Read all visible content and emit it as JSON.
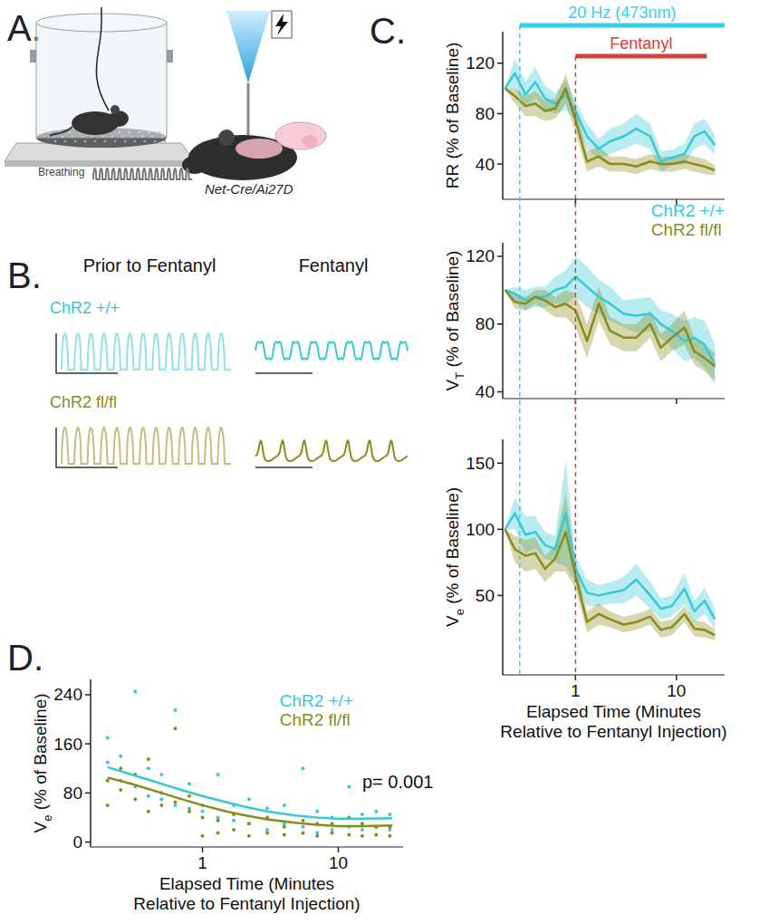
{
  "panels": {
    "a": {
      "letter": "A.",
      "trace_label": "Breathing",
      "mouse_label": "Net-Cre/Ai27D"
    },
    "b": {
      "letter": "B.",
      "columns": [
        "Prior to Fentanyl",
        "Fentanyl"
      ],
      "rows": [
        {
          "name": "ChR2 +/+",
          "color": "#35c8d5"
        },
        {
          "name": "ChR2 fl/fl",
          "color": "#8a8a1a"
        }
      ]
    },
    "c": {
      "letter": "C."
    },
    "d": {
      "letter": "D."
    }
  },
  "chart_data": [
    {
      "type": "line",
      "ylabel": "RR (% of Baseline)",
      "log": "x",
      "tick_labels": "y",
      "legend": "lower-right",
      "x": [
        0.2,
        0.25,
        0.32,
        0.4,
        0.5,
        0.63,
        0.8,
        1,
        1.3,
        1.7,
        2.2,
        3,
        4,
        5.5,
        7,
        9,
        12,
        15,
        19,
        24
      ],
      "xlim": [
        0.19,
        30
      ],
      "xticks": [
        1,
        10
      ],
      "ylim": [
        12,
        145
      ],
      "yticks": [
        40,
        80,
        120
      ],
      "annotations": [
        {
          "text": "20 Hz (473nm)",
          "color": "#33cfe8",
          "x_start": 0.28,
          "x_end": 30
        },
        {
          "text": "Fentanyl",
          "color": "#d4403b",
          "x_start": 1,
          "x_end": 20
        }
      ],
      "series": [
        {
          "name": "ChR2 +/+",
          "color": "#35c8d5",
          "values": [
            100,
            112,
            95,
            105,
            92,
            88,
            95,
            82,
            62,
            52,
            58,
            62,
            68,
            62,
            42,
            45,
            48,
            62,
            66,
            55
          ],
          "error": [
            0,
            12,
            10,
            12,
            10,
            8,
            12,
            8,
            10,
            8,
            10,
            10,
            12,
            10,
            8,
            6,
            8,
            10,
            10,
            8
          ]
        },
        {
          "name": "ChR2 fl/fl",
          "color": "#8a8a1a",
          "values": [
            100,
            94,
            86,
            88,
            82,
            84,
            100,
            75,
            42,
            46,
            40,
            40,
            38,
            42,
            40,
            40,
            42,
            40,
            38,
            35
          ],
          "error": [
            0,
            6,
            8,
            10,
            8,
            8,
            12,
            10,
            8,
            8,
            6,
            6,
            6,
            6,
            6,
            6,
            6,
            6,
            6,
            4
          ]
        }
      ]
    },
    {
      "type": "line",
      "ylabel": "VT (% of Baseline)",
      "log": "x",
      "tick_labels": "y",
      "x": [
        0.2,
        0.25,
        0.32,
        0.4,
        0.5,
        0.63,
        0.8,
        1,
        1.3,
        1.7,
        2.2,
        3,
        4,
        5.5,
        7,
        9,
        12,
        15,
        19,
        24
      ],
      "xlim": [
        0.19,
        30
      ],
      "xticks": [
        1,
        10
      ],
      "ylim": [
        36,
        128
      ],
      "yticks": [
        40,
        80,
        120
      ],
      "series": [
        {
          "color": "#35c8d5",
          "values": [
            100,
            98,
            94,
            96,
            96,
            100,
            102,
            108,
            102,
            96,
            92,
            86,
            85,
            86,
            80,
            76,
            70,
            72,
            68,
            56
          ],
          "error": [
            0,
            4,
            6,
            6,
            6,
            8,
            10,
            12,
            12,
            10,
            10,
            8,
            10,
            10,
            8,
            10,
            12,
            12,
            14,
            12
          ]
        },
        {
          "color": "#8a8a1a",
          "values": [
            100,
            93,
            92,
            96,
            94,
            90,
            92,
            88,
            70,
            92,
            76,
            72,
            72,
            80,
            66,
            72,
            78,
            64,
            60,
            55
          ],
          "error": [
            0,
            4,
            4,
            4,
            6,
            6,
            8,
            10,
            10,
            10,
            8,
            8,
            8,
            8,
            8,
            8,
            10,
            8,
            8,
            8
          ]
        }
      ]
    },
    {
      "type": "line",
      "ylabel": "Ve (% of Baseline)",
      "xlabel": "Elapsed Time (Minutes\nRelative to Fentanyl Injection)",
      "log": "x",
      "x": [
        0.2,
        0.25,
        0.32,
        0.4,
        0.5,
        0.63,
        0.8,
        1,
        1.3,
        1.7,
        2.2,
        3,
        4,
        5.5,
        7,
        9,
        12,
        15,
        19,
        24
      ],
      "xlim": [
        0.19,
        30
      ],
      "xticks": [
        1,
        10
      ],
      "ylim": [
        -10,
        168
      ],
      "yticks": [
        50,
        100,
        150
      ],
      "series": [
        {
          "color": "#35c8d5",
          "values": [
            100,
            112,
            96,
            98,
            88,
            85,
            112,
            70,
            52,
            50,
            52,
            54,
            62,
            50,
            40,
            42,
            55,
            38,
            46,
            32
          ],
          "error": [
            0,
            12,
            14,
            12,
            10,
            10,
            40,
            10,
            10,
            8,
            8,
            10,
            12,
            10,
            8,
            8,
            12,
            8,
            10,
            8
          ]
        },
        {
          "color": "#8a8a1a",
          "values": [
            100,
            85,
            80,
            82,
            70,
            78,
            98,
            65,
            30,
            36,
            32,
            28,
            30,
            34,
            24,
            26,
            36,
            25,
            24,
            20
          ],
          "error": [
            0,
            10,
            12,
            12,
            10,
            10,
            30,
            10,
            8,
            8,
            6,
            6,
            6,
            6,
            6,
            6,
            6,
            6,
            6,
            4
          ]
        }
      ]
    },
    {
      "type": "scatter",
      "ylabel": "Ve (% of Baseline)",
      "xlabel": "Elapsed Time (Minutes\nRelative to Fentanyl Injection)",
      "log": "x",
      "legend": "upper-right",
      "xlim": [
        0.15,
        30
      ],
      "xticks": [
        1,
        10
      ],
      "ylim": [
        -8,
        265
      ],
      "yticks": [
        0,
        80,
        160,
        240
      ],
      "annotations": [
        {
          "text": "p= 0.001"
        }
      ],
      "series": [
        {
          "name": "ChR2 +/+",
          "color": "#35c8d5",
          "x": [
            0.2,
            0.2,
            0.25,
            0.25,
            0.32,
            0.32,
            0.4,
            0.4,
            0.5,
            0.5,
            0.63,
            0.63,
            0.8,
            0.8,
            1,
            1,
            1.3,
            1.3,
            1.7,
            1.7,
            2.2,
            2.2,
            3,
            3,
            4,
            4,
            5.5,
            5.5,
            7,
            7,
            9,
            9,
            12,
            12,
            15,
            15,
            19,
            19,
            24,
            24
          ],
          "values": [
            170,
            130,
            100,
            140,
            245,
            90,
            120,
            75,
            110,
            70,
            215,
            60,
            95,
            55,
            60,
            50,
            110,
            40,
            60,
            35,
            70,
            30,
            55,
            20,
            60,
            30,
            120,
            25,
            50,
            15,
            40,
            20,
            90,
            25,
            45,
            20,
            50,
            25,
            45,
            20
          ]
        },
        {
          "name": "ChR2 fl/fl",
          "color": "#8a8a1a",
          "x": [
            0.2,
            0.2,
            0.25,
            0.25,
            0.32,
            0.32,
            0.4,
            0.4,
            0.5,
            0.5,
            0.63,
            0.63,
            0.8,
            0.8,
            1,
            1,
            1.3,
            1.3,
            1.7,
            1.7,
            2.2,
            2.2,
            3,
            3,
            4,
            4,
            5.5,
            5.5,
            7,
            7,
            9,
            9,
            12,
            12,
            15,
            15,
            19,
            19,
            24,
            24
          ],
          "values": [
            100,
            60,
            85,
            120,
            110,
            70,
            135,
            50,
            80,
            60,
            185,
            65,
            75,
            50,
            10,
            40,
            35,
            15,
            45,
            20,
            30,
            10,
            40,
            15,
            25,
            12,
            35,
            15,
            30,
            10,
            30,
            15,
            40,
            12,
            30,
            10,
            25,
            12,
            25,
            10
          ]
        },
        {
          "type": "line",
          "color": "#35c8d5",
          "x": [
            0.2,
            0.3,
            0.5,
            0.7,
            1,
            1.5,
            2,
            3,
            5,
            7,
            10,
            15,
            25
          ],
          "values": [
            122,
            110,
            95,
            85,
            75,
            65,
            58,
            50,
            43,
            40,
            38,
            38,
            39
          ]
        },
        {
          "type": "line",
          "color": "#8a8a1a",
          "x": [
            0.2,
            0.3,
            0.5,
            0.7,
            1,
            1.5,
            2,
            3,
            5,
            7,
            10,
            15,
            25
          ],
          "values": [
            105,
            95,
            80,
            70,
            60,
            50,
            44,
            37,
            31,
            28,
            26,
            26,
            27
          ]
        }
      ]
    }
  ]
}
